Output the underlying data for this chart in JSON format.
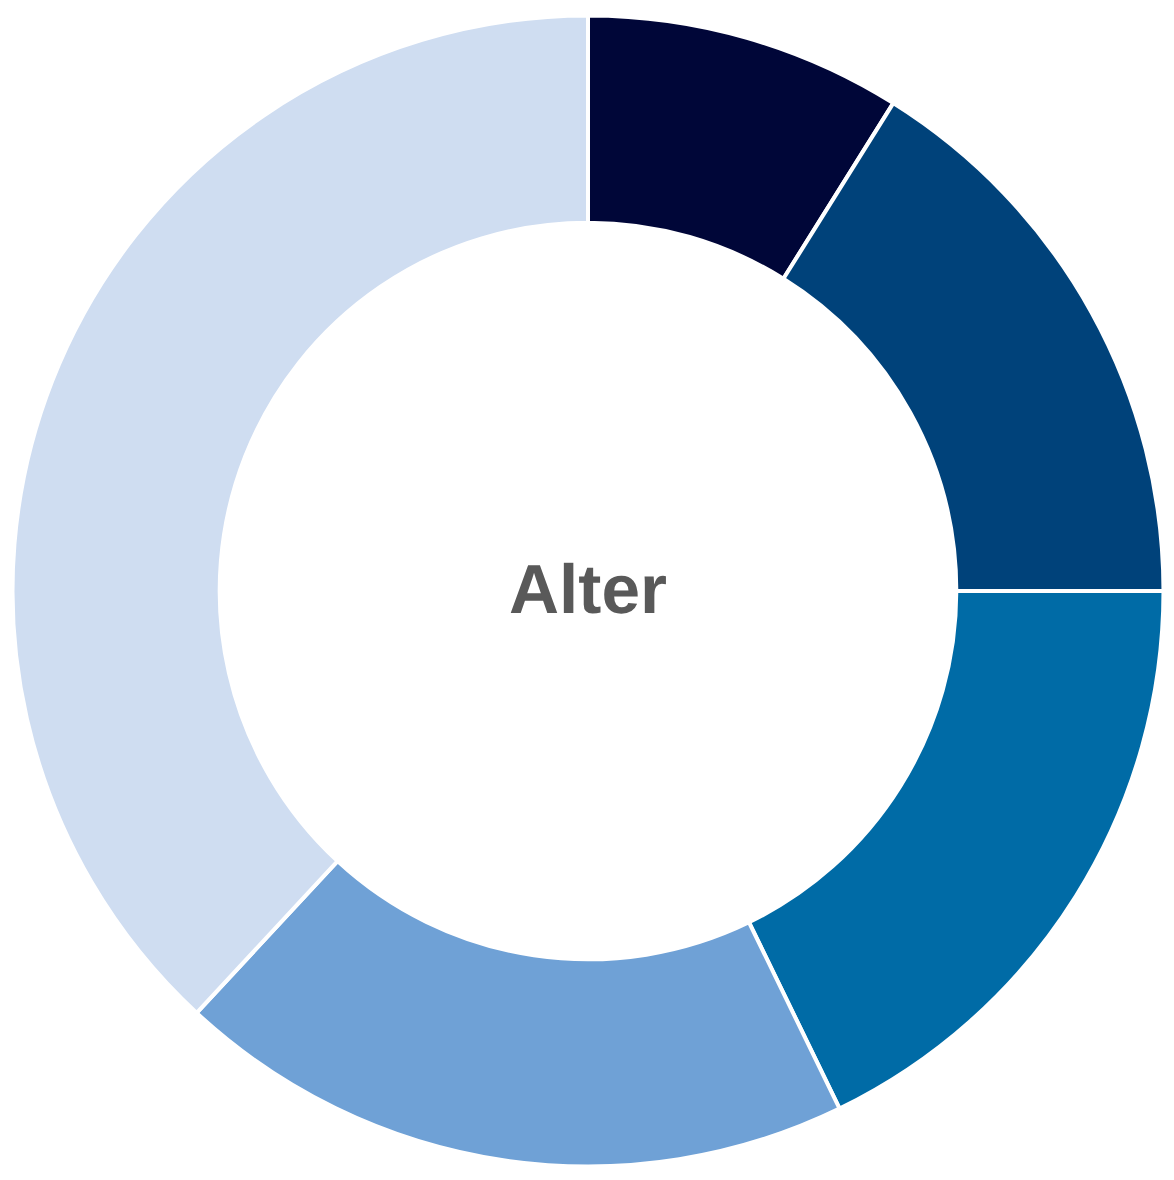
{
  "chart_data": {
    "type": "donut",
    "title": "Alter",
    "categories": [
      null,
      null,
      null,
      null,
      null
    ],
    "values": [
      8.9,
      16.1,
      17.8,
      19.1,
      38.1
    ],
    "colors": [
      "#000638",
      "#00427a",
      "#006ba6",
      "#6fa1d6",
      "#cfddf1"
    ]
  }
}
